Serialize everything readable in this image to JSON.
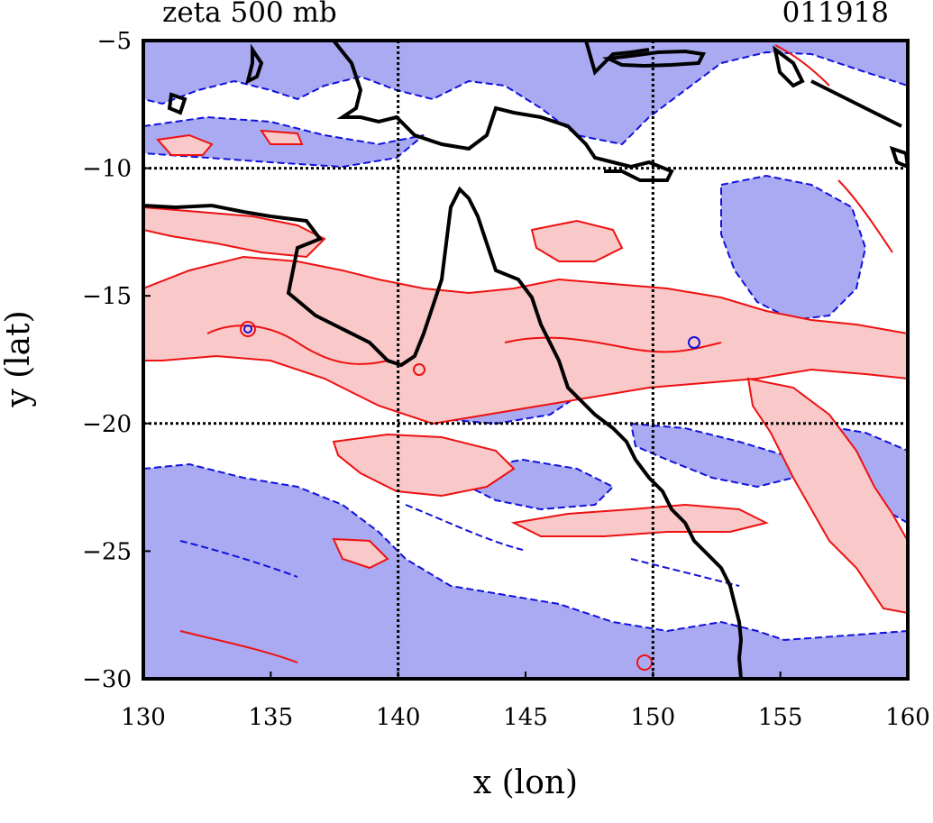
{
  "title_left": "zeta 500 mb",
  "title_right": "011918",
  "axes": {
    "x_label": "x (lon)",
    "y_label": "y (lat)",
    "x_range": [
      130,
      160
    ],
    "y_range": [
      -30,
      -5
    ],
    "x_ticks": [
      "130",
      "135",
      "140",
      "145",
      "150",
      "155",
      "160"
    ],
    "y_ticks": [
      "−5",
      "−10",
      "−15",
      "−20",
      "−25",
      "−30"
    ],
    "gridlines_lon": [
      140,
      150
    ],
    "gridlines_lat": [
      -10,
      -20
    ]
  },
  "colors": {
    "positive_fill": "#f9c8c8",
    "positive_line": "#ee1111",
    "negative_fill": "#aaaaf2",
    "negative_line": "#1111dd",
    "coastline": "#000000",
    "grid": "#000000",
    "frame": "#000000"
  }
}
